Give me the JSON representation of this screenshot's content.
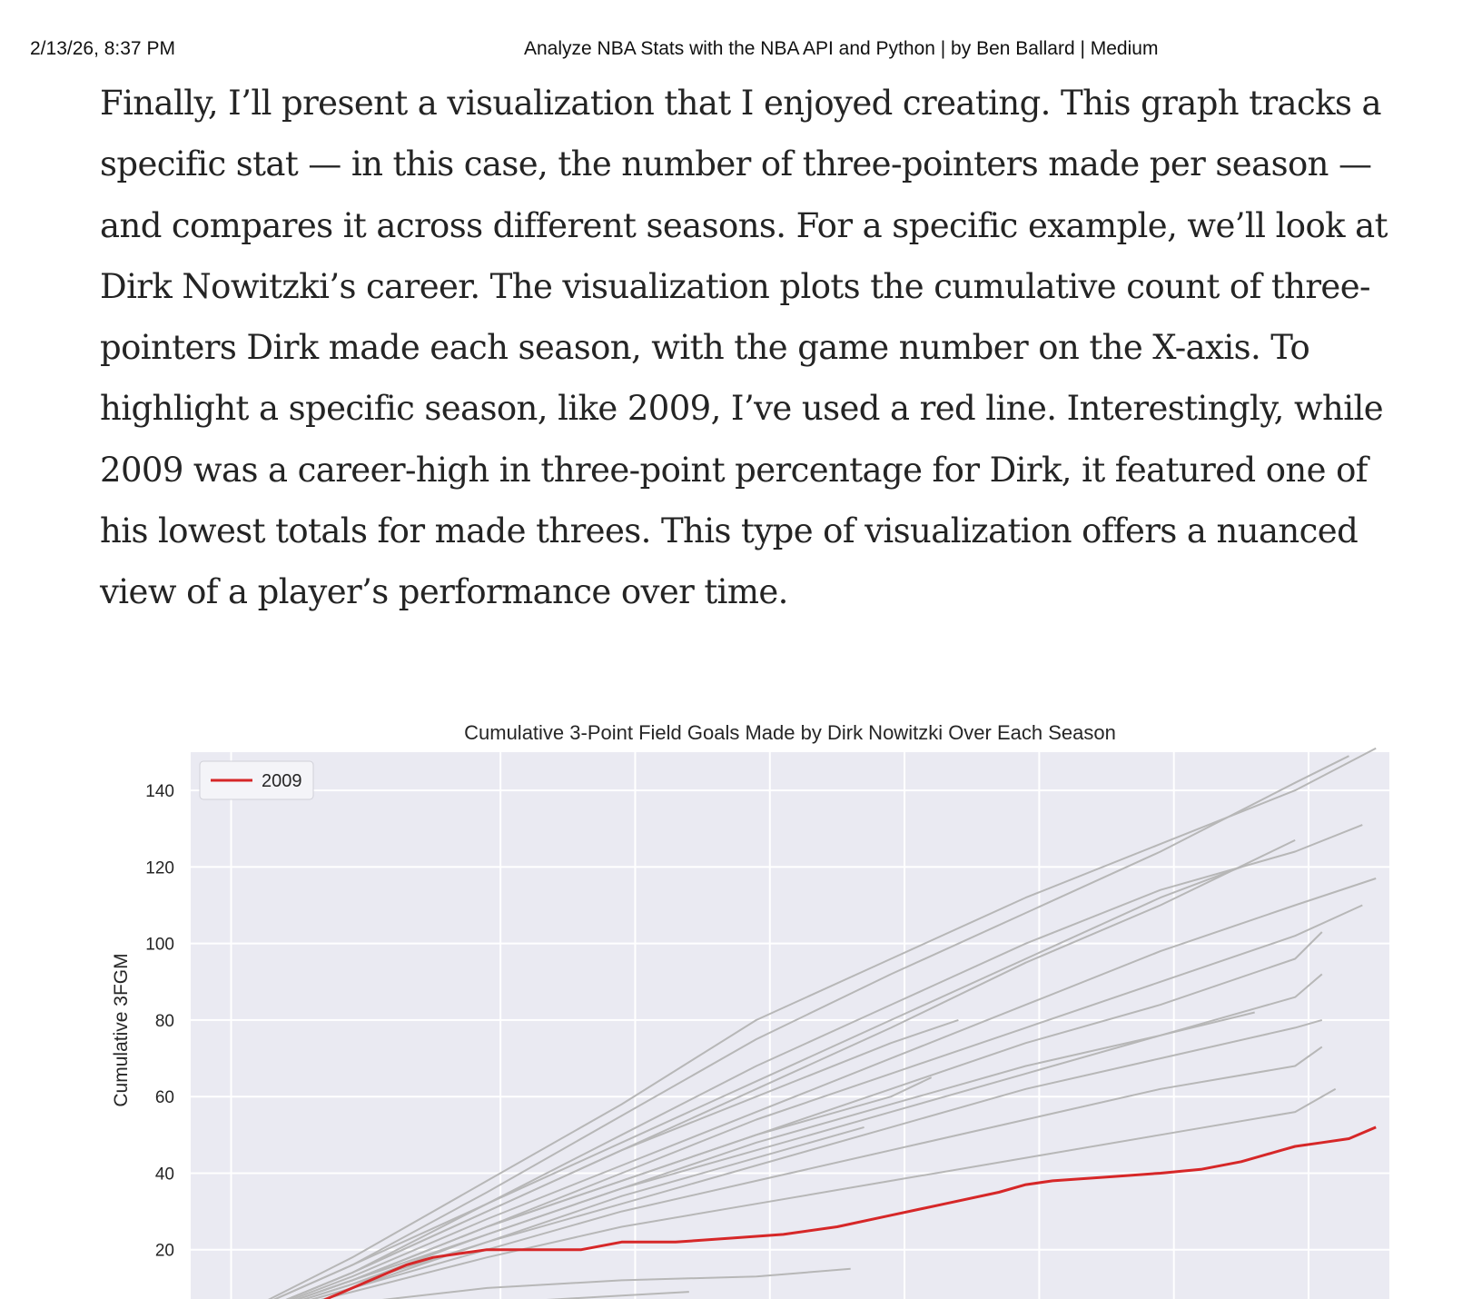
{
  "print_header": {
    "datetime": "2/13/26, 8:37 PM",
    "page_title": "Analyze NBA Stats with the NBA API and Python | by Ben Ballard | Medium"
  },
  "article": {
    "paragraph": "Finally, I’ll present a visualization that I enjoyed creating. This graph tracks a specific stat — in this case, the number of three-pointers made per season — and compares it across different seasons. For a specific example, we’ll look at Dirk Nowitzki’s career. The visualization plots the cumulative count of three-pointers Dirk made each season, with the game number on the X-axis. To highlight a specific season, like 2009, I’ve used a red line. Interestingly, while 2009 was a career-high in three-point percentage for Dirk, it featured one of his lowest totals for made threes. This type of visualization offers a nuanced view of a player’s performance over time."
  },
  "colors": {
    "plot_background": "#eaeaf2",
    "grid": "#ffffff",
    "highlight": "#d62728",
    "other_seasons": "#b7b7b7",
    "text": "#262626"
  },
  "chart_data": {
    "type": "line",
    "title": "Cumulative 3-Point Field Goals Made by Dirk Nowitzki Over Each Season",
    "xlabel": "",
    "ylabel": "Cumulative 3FGM",
    "ylim": [
      0,
      150
    ],
    "xlim": [
      -2,
      87
    ],
    "yticks": [
      20,
      40,
      60,
      80,
      100,
      120,
      140
    ],
    "xgrid": [
      1,
      21,
      31,
      41,
      51,
      61,
      71,
      81
    ],
    "grid": true,
    "legend": {
      "position": "top-left",
      "entries": [
        "2009"
      ]
    },
    "highlight_series": "2009",
    "series": [
      {
        "name": "2009",
        "x": [
          1,
          3,
          5,
          7,
          8,
          10,
          12,
          14,
          16,
          18,
          20,
          22,
          24,
          27,
          30,
          32,
          34,
          38,
          42,
          46,
          50,
          54,
          58,
          60,
          62,
          66,
          70,
          73,
          76,
          79,
          80,
          82,
          84,
          86
        ],
        "y": [
          1,
          4,
          6,
          5,
          7,
          10,
          13,
          16,
          18,
          19,
          20,
          20,
          20,
          20,
          22,
          22,
          22,
          23,
          24,
          26,
          29,
          32,
          35,
          37,
          38,
          39,
          40,
          41,
          43,
          46,
          47,
          48,
          49,
          52
        ]
      },
      {
        "x": [
          1,
          10,
          20,
          30,
          40,
          50,
          60,
          70,
          80,
          86
        ],
        "y": [
          2,
          18,
          38,
          58,
          80,
          96,
          112,
          126,
          140,
          151
        ]
      },
      {
        "x": [
          1,
          10,
          20,
          30,
          40,
          50,
          60,
          70,
          80,
          84
        ],
        "y": [
          2,
          16,
          35,
          55,
          75,
          92,
          108,
          124,
          142,
          149
        ]
      },
      {
        "x": [
          1,
          10,
          20,
          30,
          40,
          50,
          60,
          70,
          80,
          85
        ],
        "y": [
          1,
          14,
          32,
          50,
          68,
          84,
          100,
          114,
          124,
          131
        ]
      },
      {
        "x": [
          1,
          10,
          20,
          30,
          40,
          50,
          60,
          70,
          80
        ],
        "y": [
          1,
          14,
          30,
          46,
          62,
          78,
          95,
          110,
          127
        ]
      },
      {
        "x": [
          1,
          10,
          20,
          30,
          40,
          50,
          60,
          70,
          80,
          86
        ],
        "y": [
          1,
          13,
          28,
          42,
          56,
          70,
          84,
          98,
          110,
          117
        ]
      },
      {
        "x": [
          1,
          10,
          20,
          30,
          40,
          50,
          60,
          70,
          80,
          85
        ],
        "y": [
          1,
          12,
          26,
          40,
          54,
          66,
          78,
          90,
          102,
          110
        ]
      },
      {
        "x": [
          1,
          10,
          20,
          30,
          40,
          50,
          60,
          70,
          80,
          82
        ],
        "y": [
          1,
          12,
          26,
          38,
          50,
          62,
          74,
          84,
          96,
          103
        ]
      },
      {
        "x": [
          1,
          10,
          20,
          30,
          40,
          50,
          60,
          70,
          80,
          82
        ],
        "y": [
          1,
          12,
          24,
          36,
          46,
          56,
          66,
          76,
          86,
          92
        ]
      },
      {
        "x": [
          1,
          10,
          20,
          30,
          40,
          50,
          60,
          70,
          80,
          82
        ],
        "y": [
          1,
          11,
          22,
          32,
          42,
          52,
          62,
          70,
          78,
          80
        ]
      },
      {
        "x": [
          1,
          10,
          20,
          30,
          40,
          50,
          60,
          70,
          80,
          82
        ],
        "y": [
          1,
          10,
          20,
          30,
          38,
          46,
          54,
          62,
          68,
          73
        ]
      },
      {
        "x": [
          1,
          10,
          20,
          30,
          40,
          50,
          60,
          70,
          80,
          83
        ],
        "y": [
          1,
          9,
          18,
          26,
          32,
          38,
          44,
          50,
          56,
          62
        ]
      },
      {
        "x": [
          1,
          10,
          20,
          30,
          40,
          50,
          60,
          70,
          76
        ],
        "y": [
          2,
          16,
          32,
          48,
          64,
          80,
          96,
          112,
          120
        ]
      },
      {
        "x": [
          1,
          10,
          20,
          30,
          40,
          50,
          55
        ],
        "y": [
          1,
          14,
          30,
          46,
          60,
          74,
          80
        ]
      },
      {
        "x": [
          1,
          10,
          20,
          30,
          40,
          50,
          53
        ],
        "y": [
          1,
          12,
          26,
          38,
          50,
          60,
          65
        ]
      },
      {
        "x": [
          1,
          10,
          20,
          30,
          40,
          48
        ],
        "y": [
          1,
          10,
          22,
          34,
          44,
          52
        ]
      },
      {
        "x": [
          1,
          10,
          20,
          30,
          40,
          50,
          60,
          70,
          77
        ],
        "y": [
          1,
          11,
          24,
          36,
          48,
          58,
          68,
          76,
          82
        ]
      },
      {
        "x": [
          1,
          10,
          20,
          30,
          40,
          47
        ],
        "y": [
          1,
          6,
          10,
          12,
          13,
          15
        ]
      },
      {
        "x": [
          1,
          10,
          20,
          30,
          35
        ],
        "y": [
          0,
          3,
          6,
          8,
          9
        ]
      }
    ]
  }
}
